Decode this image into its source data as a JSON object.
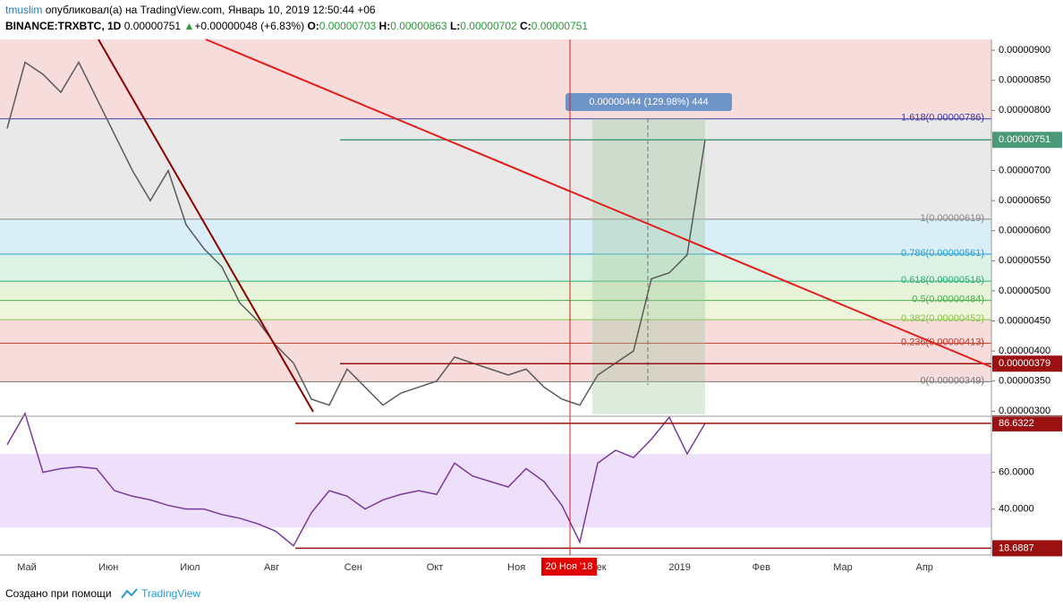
{
  "header": {
    "user": "tmuslim",
    "published": "опубликовал(а) на TradingView.com, Январь 10, 2019 12:50:44 +06",
    "symbol": "BINANCE:TRXBTC, 1D",
    "last": "0.00000751",
    "change": "+0.00000048 (+6.83%)",
    "open_label": "O:",
    "open": "0.00000703",
    "high_label": "H:",
    "high": "0.00000863",
    "low_label": "L:",
    "low": "0.00000702",
    "close_label": "C:",
    "close": "0.00000751"
  },
  "chart_data": [
    {
      "type": "line",
      "color": "#5a5a5a",
      "values": [
        7.7e-06,
        8.8e-06,
        8.6e-06,
        8.3e-06,
        8.8e-06,
        8.2e-06,
        7.6e-06,
        7e-06,
        6.5e-06,
        7e-06,
        6.1e-06,
        5.7e-06,
        5.4e-06,
        4.8e-06,
        4.5e-06,
        4.1e-06,
        3.8e-06,
        3.2e-06,
        3.1e-06,
        3.7e-06,
        3.4e-06,
        3.1e-06,
        3.3e-06,
        3.4e-06,
        3.5e-06,
        3.9e-06,
        3.8e-06,
        3.7e-06,
        3.6e-06,
        3.7e-06,
        3.4e-06,
        3.2e-06,
        3.1e-06,
        3.6e-06,
        3.8e-06,
        4e-06,
        5.2e-06,
        5.3e-06,
        5.6e-06,
        7.51e-06
      ],
      "ylim": [
        2.96e-06,
        9.18e-06
      ],
      "yticks": [
        {
          "value": 9e-06,
          "label": "0.00000900"
        },
        {
          "value": 8.5e-06,
          "label": "0.00000850"
        },
        {
          "value": 8e-06,
          "label": "0.00000800"
        },
        {
          "value": 7e-06,
          "label": "0.00000700"
        },
        {
          "value": 6.5e-06,
          "label": "0.00000650"
        },
        {
          "value": 6e-06,
          "label": "0.00000600"
        },
        {
          "value": 5.5e-06,
          "label": "0.00000550"
        },
        {
          "value": 5e-06,
          "label": "0.00000500"
        },
        {
          "value": 4.5e-06,
          "label": "0.00000450"
        },
        {
          "value": 4e-06,
          "label": "0.00000400"
        },
        {
          "value": 3.5e-06,
          "label": "0.00000350"
        },
        {
          "value": 3e-06,
          "label": "0.00000300"
        }
      ],
      "fib": [
        {
          "label": "1.618(0.00000786)",
          "value": 7.86e-06,
          "color": "#3b3ba0",
          "fill": "#dedcf6"
        },
        {
          "label": "1(0.00000619)",
          "value": 6.19e-06,
          "color": "#888888",
          "fill": "#e9e9e9"
        },
        {
          "label": "0.786(0.00000561)",
          "value": 5.61e-06,
          "color": "#2aa0d0",
          "fill": "#d9eef7"
        },
        {
          "label": "0.618(0.00000516)",
          "value": 5.16e-06,
          "color": "#2bb07a",
          "fill": "#dcf2e4"
        },
        {
          "label": "0.5(0.00000484)",
          "value": 4.84e-06,
          "color": "#4caf50",
          "fill": "#e6f3d8"
        },
        {
          "label": "0.382(0.00000452)",
          "value": 4.52e-06,
          "color": "#8bc34a",
          "fill": "#eef5dc"
        },
        {
          "label": "0.236(0.00000413)",
          "value": 4.13e-06,
          "color": "#c0392b",
          "fill": "#f7dcdc"
        },
        {
          "label": "0(0.00000349)",
          "value": 3.49e-06,
          "color": "#777777",
          "fill": "#f7dcdc"
        }
      ],
      "price_flags": [
        {
          "value": 7.51e-06,
          "label": "0.00000751",
          "color": "#4a9a7a"
        },
        {
          "value": 3.79e-06,
          "label": "0.00000379",
          "color": "#9b1111"
        }
      ],
      "measure": "0.00000444 (129.98%) 444"
    },
    {
      "type": "line",
      "color": "#7a3a9a",
      "values": [
        75,
        92,
        60,
        62,
        63,
        62,
        50,
        47,
        45,
        42,
        40,
        40,
        37,
        35,
        32,
        28,
        20,
        38,
        50,
        47,
        40,
        45,
        48,
        50,
        48,
        65,
        58,
        55,
        52,
        62,
        55,
        42,
        22,
        65,
        72,
        68,
        78,
        90,
        70,
        86.6322
      ],
      "ylim": [
        15,
        90
      ],
      "yticks": [
        {
          "value": 60,
          "label": "60.0000"
        },
        {
          "value": 40,
          "label": "40.0000"
        }
      ],
      "price_flags": [
        {
          "value": 86.6322,
          "label": "86.6322",
          "color": "#9b1111"
        },
        {
          "value": 18.6887,
          "label": "18.6887",
          "color": "#9b1111"
        }
      ]
    }
  ],
  "x_axis": {
    "categories": [
      "Май",
      "Июн",
      "Июл",
      "Авг",
      "Сен",
      "Окт",
      "Ноя",
      "Дек",
      "2019",
      "Фев",
      "Мар",
      "Апр"
    ],
    "cursor": "20 Ноя '18"
  },
  "footer": {
    "text": "Создано при помощи",
    "brand": "TradingView"
  }
}
